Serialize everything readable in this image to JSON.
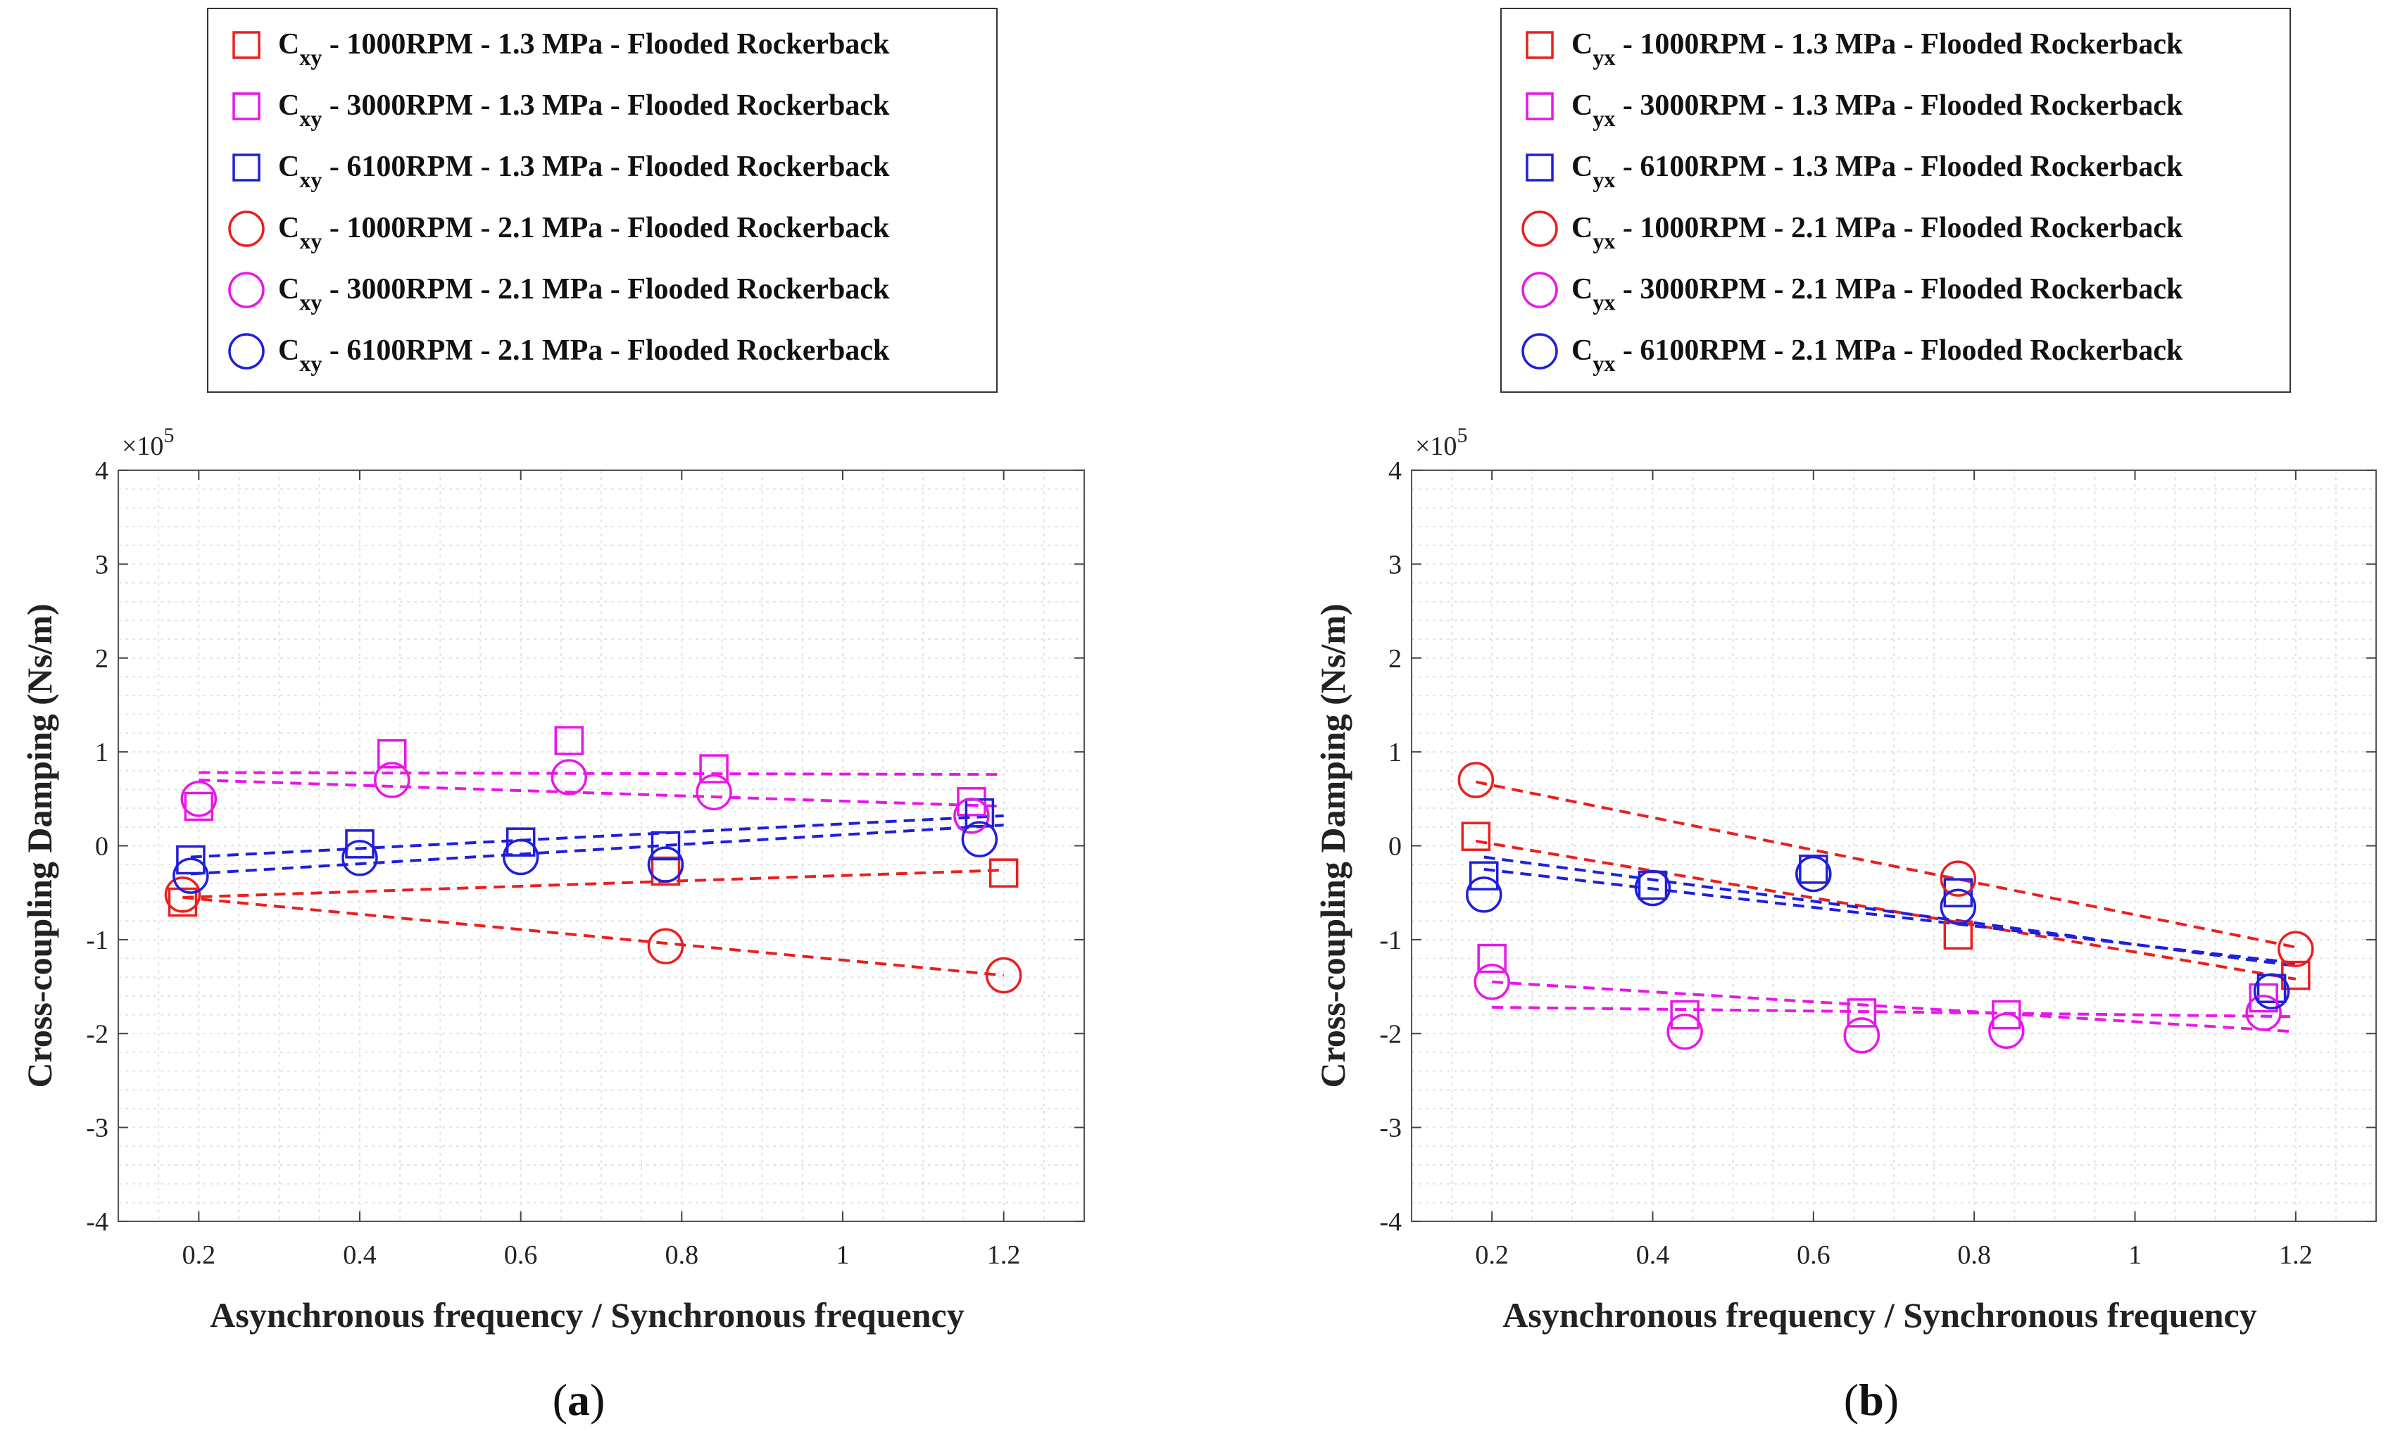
{
  "chart_data": [
    {
      "type": "scatter",
      "panel_label": "a",
      "xlabel": "Asynchronous frequency / Synchronous frequency",
      "ylabel": "Cross-coupling Damping (Ns/m)",
      "y_multiplier": "×10",
      "y_multiplier_exp": "5",
      "xlim": [
        0.1,
        1.3
      ],
      "ylim": [
        -4,
        4
      ],
      "xticks": [
        0.2,
        0.4,
        0.6,
        0.8,
        1,
        1.2
      ],
      "yticks": [
        -4,
        -3,
        -2,
        -1,
        0,
        1,
        2,
        3,
        4
      ],
      "grid": true,
      "legend_placement": "above",
      "series": [
        {
          "name": "1000RPM - 1.3 MPa - Flooded Rockerback",
          "coef": "C",
          "sub": "xy",
          "marker": "square",
          "color": "#e8201e",
          "points": [
            [
              0.18,
              -0.6
            ],
            [
              0.78,
              -0.27
            ],
            [
              1.2,
              -0.29
            ]
          ],
          "fit": [
            [
              0.18,
              -0.55
            ],
            [
              1.2,
              -0.26
            ]
          ]
        },
        {
          "name": "3000RPM - 1.3 MPa - Flooded Rockerback",
          "coef": "C",
          "sub": "xy",
          "marker": "square",
          "color": "#e817e8",
          "points": [
            [
              0.2,
              0.42
            ],
            [
              0.44,
              0.98
            ],
            [
              0.66,
              1.12
            ],
            [
              0.84,
              0.82
            ],
            [
              1.16,
              0.47
            ]
          ],
          "fit": [
            [
              0.2,
              0.78
            ],
            [
              1.2,
              0.76
            ]
          ]
        },
        {
          "name": "6100RPM - 1.3 MPa - Flooded Rockerback",
          "coef": "C",
          "sub": "xy",
          "marker": "square",
          "color": "#1f1fdc",
          "points": [
            [
              0.19,
              -0.15
            ],
            [
              0.4,
              0.02
            ],
            [
              0.6,
              0.04
            ],
            [
              0.78,
              0.0
            ],
            [
              1.17,
              0.35
            ]
          ],
          "fit": [
            [
              0.19,
              -0.12
            ],
            [
              1.2,
              0.32
            ]
          ]
        },
        {
          "name": "1000RPM - 2.1 MPa - Flooded Rockerback",
          "coef": "C",
          "sub": "xy",
          "marker": "circle",
          "color": "#e8201e",
          "points": [
            [
              0.18,
              -0.52
            ],
            [
              0.78,
              -1.07
            ],
            [
              1.2,
              -1.38
            ]
          ],
          "fit": [
            [
              0.18,
              -0.55
            ],
            [
              1.2,
              -1.38
            ]
          ]
        },
        {
          "name": "3000RPM - 2.1 MPa - Flooded Rockerback",
          "coef": "C",
          "sub": "xy",
          "marker": "circle",
          "color": "#e817e8",
          "points": [
            [
              0.2,
              0.5
            ],
            [
              0.44,
              0.7
            ],
            [
              0.66,
              0.73
            ],
            [
              0.84,
              0.57
            ],
            [
              1.16,
              0.32
            ]
          ],
          "fit": [
            [
              0.2,
              0.7
            ],
            [
              1.2,
              0.42
            ]
          ]
        },
        {
          "name": "6100RPM - 2.1 MPa - Flooded Rockerback",
          "coef": "C",
          "sub": "xy",
          "marker": "circle",
          "color": "#1f1fdc",
          "points": [
            [
              0.19,
              -0.32
            ],
            [
              0.4,
              -0.13
            ],
            [
              0.6,
              -0.12
            ],
            [
              0.78,
              -0.2
            ],
            [
              1.17,
              0.07
            ]
          ],
          "fit": [
            [
              0.19,
              -0.3
            ],
            [
              1.2,
              0.22
            ]
          ]
        }
      ]
    },
    {
      "type": "scatter",
      "panel_label": "b",
      "xlabel": "Asynchronous frequency / Synchronous frequency",
      "ylabel": "Cross-coupling Damping (Ns/m)",
      "y_multiplier": "×10",
      "y_multiplier_exp": "5",
      "xlim": [
        0.1,
        1.3
      ],
      "ylim": [
        -4,
        4
      ],
      "xticks": [
        0.2,
        0.4,
        0.6,
        0.8,
        1,
        1.2
      ],
      "yticks": [
        -4,
        -3,
        -2,
        -1,
        0,
        1,
        2,
        3,
        4
      ],
      "grid": true,
      "legend_placement": "above",
      "series": [
        {
          "name": "1000RPM - 1.3 MPa - Flooded Rockerback",
          "coef": "C",
          "sub": "yx",
          "marker": "square",
          "color": "#e8201e",
          "points": [
            [
              0.18,
              0.1
            ],
            [
              0.78,
              -0.95
            ],
            [
              1.2,
              -1.38
            ]
          ],
          "fit": [
            [
              0.18,
              0.05
            ],
            [
              1.2,
              -1.42
            ]
          ]
        },
        {
          "name": "3000RPM - 1.3 MPa - Flooded Rockerback",
          "coef": "C",
          "sub": "yx",
          "marker": "square",
          "color": "#e817e8",
          "points": [
            [
              0.2,
              -1.2
            ],
            [
              0.44,
              -1.8
            ],
            [
              0.66,
              -1.78
            ],
            [
              0.84,
              -1.8
            ],
            [
              1.16,
              -1.62
            ]
          ],
          "fit": [
            [
              0.2,
              -1.72
            ],
            [
              1.2,
              -1.82
            ]
          ]
        },
        {
          "name": "6100RPM - 1.3 MPa - Flooded Rockerback",
          "coef": "C",
          "sub": "yx",
          "marker": "square",
          "color": "#1f1fdc",
          "points": [
            [
              0.19,
              -0.32
            ],
            [
              0.4,
              -0.42
            ],
            [
              0.6,
              -0.25
            ],
            [
              0.78,
              -0.5
            ],
            [
              1.17,
              -1.52
            ]
          ],
          "fit": [
            [
              0.19,
              -0.12
            ],
            [
              1.2,
              -1.28
            ]
          ]
        },
        {
          "name": "1000RPM - 2.1 MPa - Flooded Rockerback",
          "coef": "C",
          "sub": "yx",
          "marker": "circle",
          "color": "#e8201e",
          "points": [
            [
              0.18,
              0.7
            ],
            [
              0.78,
              -0.35
            ],
            [
              1.2,
              -1.1
            ]
          ],
          "fit": [
            [
              0.18,
              0.68
            ],
            [
              1.2,
              -1.08
            ]
          ]
        },
        {
          "name": "3000RPM - 2.1 MPa - Flooded Rockerback",
          "coef": "C",
          "sub": "yx",
          "marker": "circle",
          "color": "#e817e8",
          "points": [
            [
              0.2,
              -1.45
            ],
            [
              0.44,
              -1.98
            ],
            [
              0.66,
              -2.02
            ],
            [
              0.84,
              -1.97
            ],
            [
              1.16,
              -1.78
            ]
          ],
          "fit": [
            [
              0.2,
              -1.45
            ],
            [
              1.2,
              -1.98
            ]
          ]
        },
        {
          "name": "6100RPM - 2.1 MPa - Flooded Rockerback",
          "coef": "C",
          "sub": "yx",
          "marker": "circle",
          "color": "#1f1fdc",
          "points": [
            [
              0.19,
              -0.52
            ],
            [
              0.4,
              -0.45
            ],
            [
              0.6,
              -0.3
            ],
            [
              0.78,
              -0.65
            ],
            [
              1.17,
              -1.55
            ]
          ],
          "fit": [
            [
              0.19,
              -0.25
            ],
            [
              1.2,
              -1.25
            ]
          ]
        }
      ]
    }
  ]
}
